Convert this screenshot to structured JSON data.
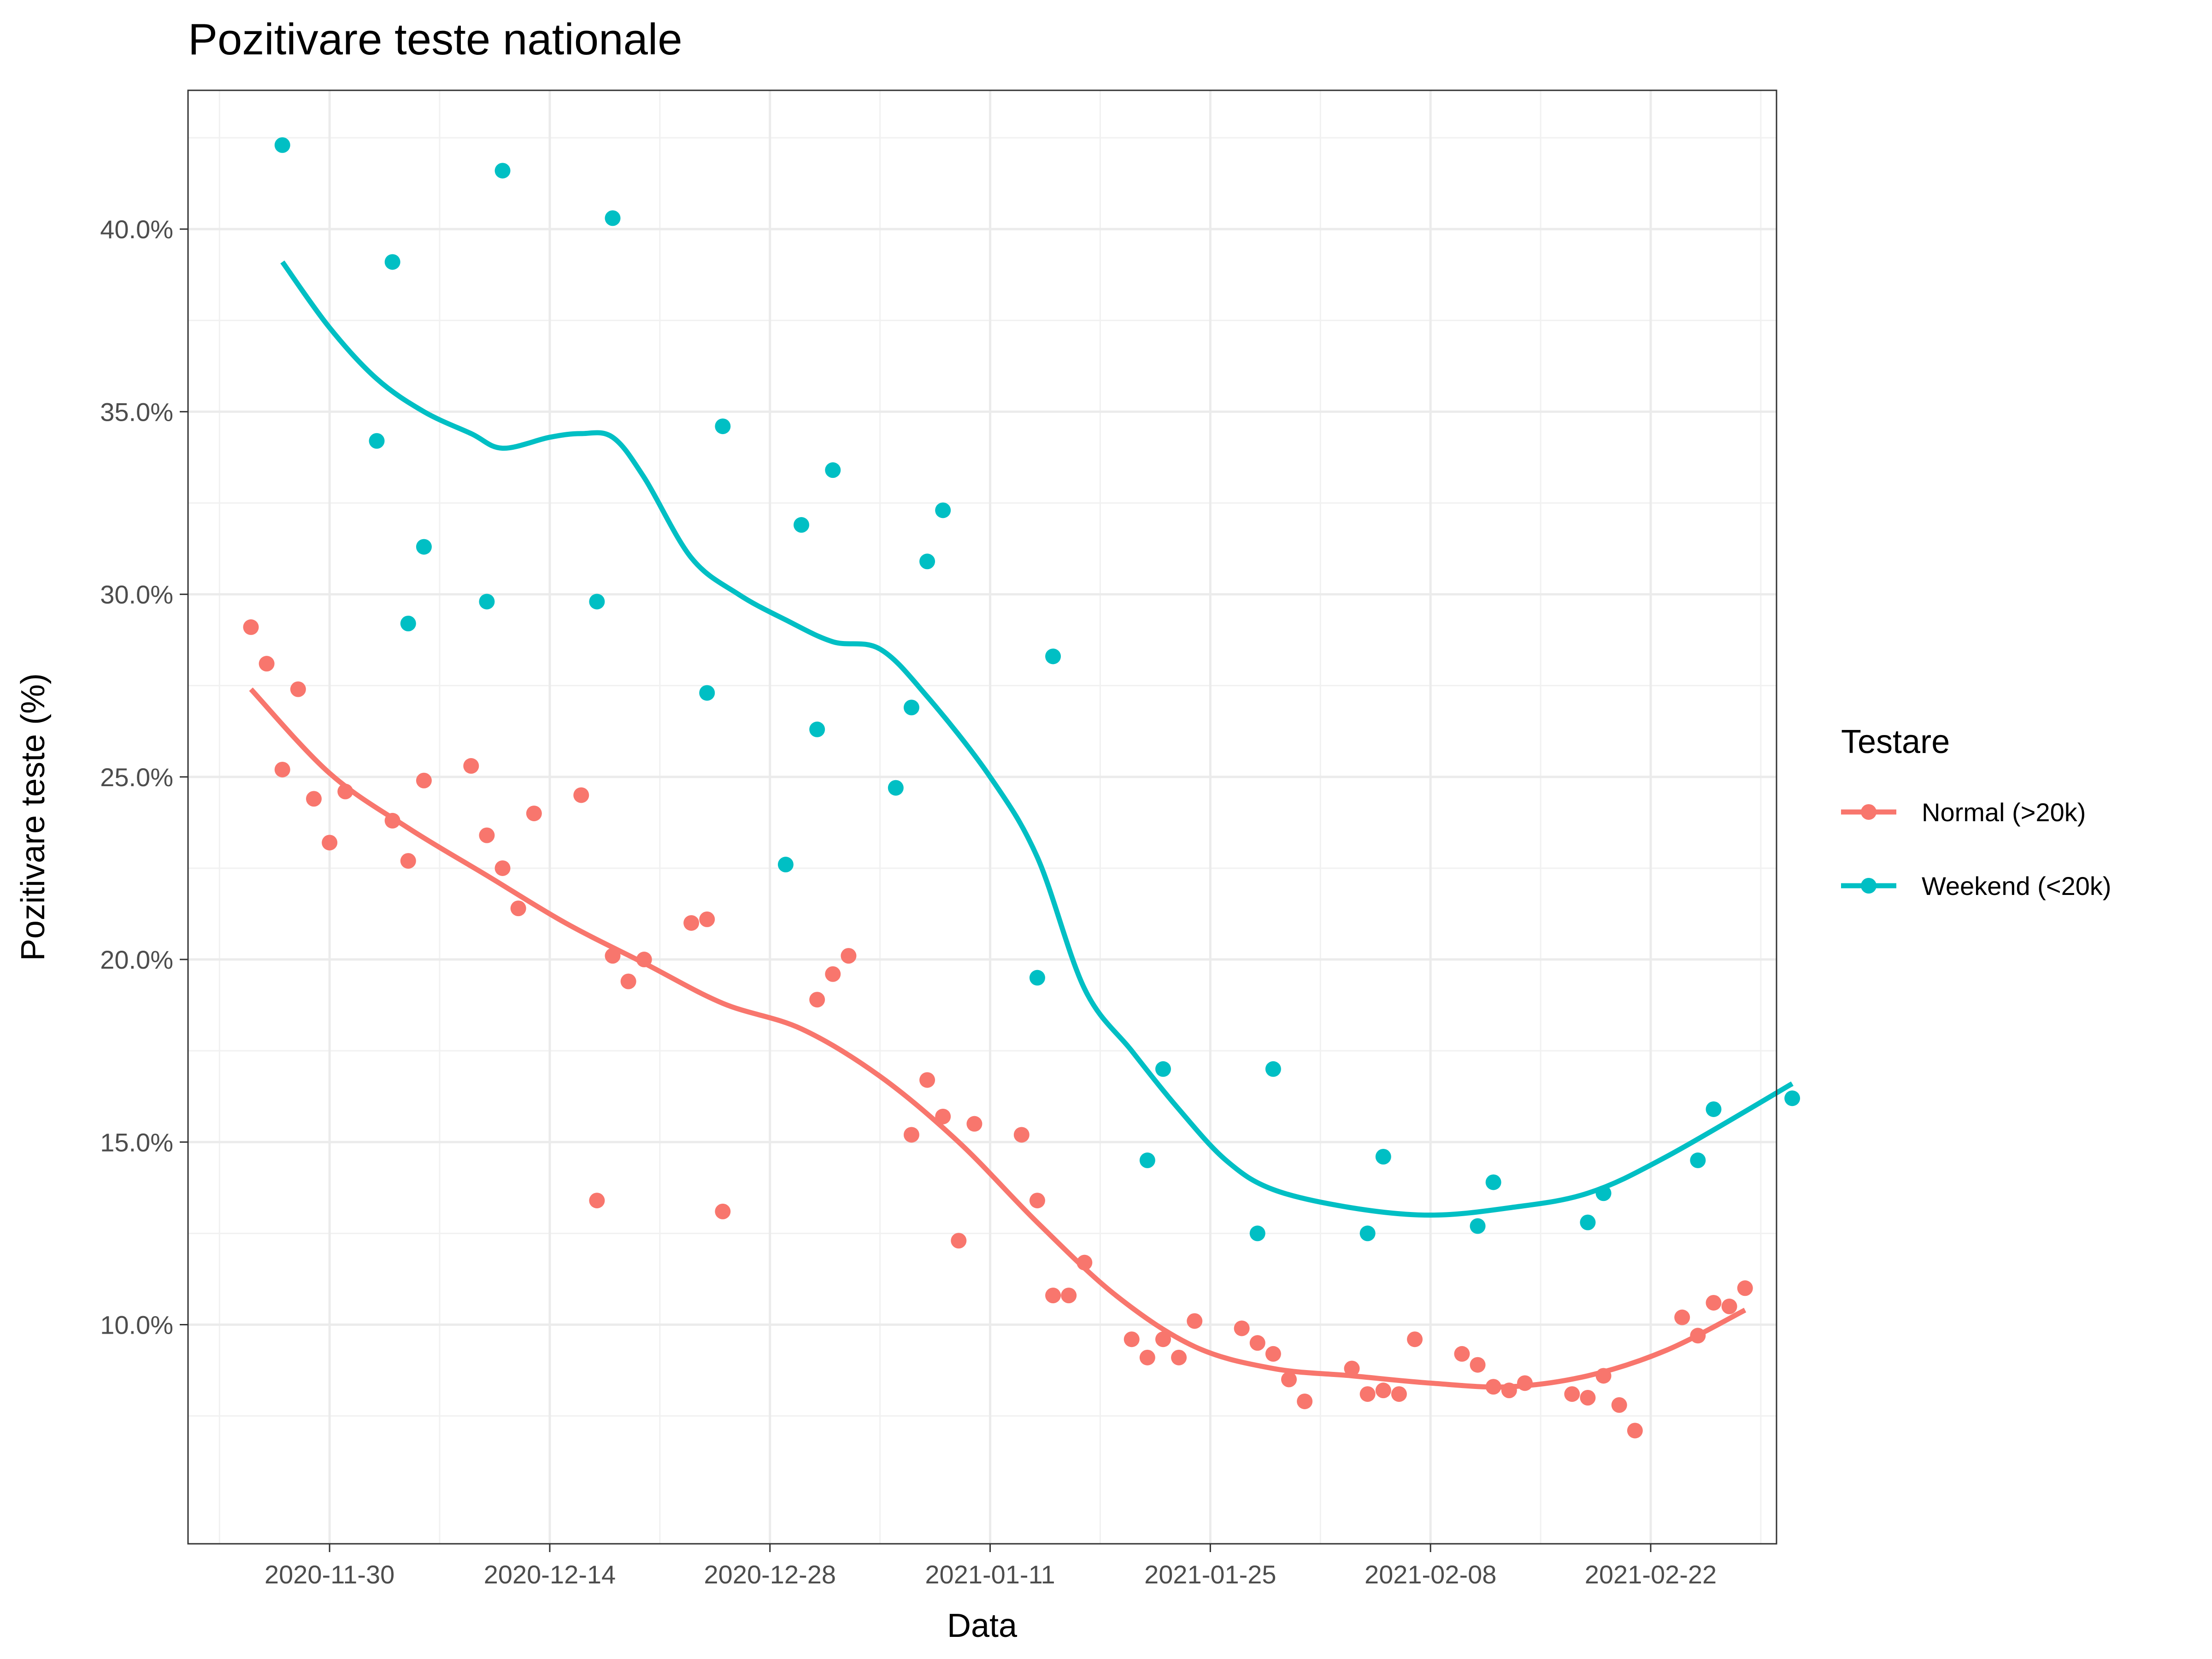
{
  "chart_data": {
    "type": "scatter",
    "title": "Pozitivare teste nationale",
    "xlabel": "Data",
    "ylabel": "Pozitivare teste (%)",
    "x_type": "date",
    "xlim": [
      "2020-11-21",
      "2021-03-02"
    ],
    "ylim": [
      4.0,
      43.8
    ],
    "x_ticks": [
      "2020-11-30",
      "2020-12-14",
      "2020-12-28",
      "2021-01-11",
      "2021-01-25",
      "2021-02-08",
      "2021-02-22"
    ],
    "y_ticks": [
      10,
      15,
      20,
      25,
      30,
      35,
      40
    ],
    "y_tick_labels": [
      "10.0%",
      "15.0%",
      "20.0%",
      "25.0%",
      "30.0%",
      "35.0%",
      "40.0%"
    ],
    "grid": true,
    "smooth_lines": true,
    "legend": {
      "title": "Testare",
      "position": "right"
    },
    "series": [
      {
        "name": "Normal (>20k)",
        "color": "#F8766D",
        "points": [
          [
            "2020-11-25",
            29.1
          ],
          [
            "2020-11-26",
            28.1
          ],
          [
            "2020-11-27",
            25.2
          ],
          [
            "2020-11-28",
            27.4
          ],
          [
            "2020-11-29",
            24.4
          ],
          [
            "2020-11-30",
            23.2
          ],
          [
            "2020-12-01",
            24.6
          ],
          [
            "2020-12-04",
            23.8
          ],
          [
            "2020-12-05",
            22.7
          ],
          [
            "2020-12-06",
            24.9
          ],
          [
            "2020-12-09",
            25.3
          ],
          [
            "2020-12-10",
            23.4
          ],
          [
            "2020-12-11",
            22.5
          ],
          [
            "2020-12-12",
            21.4
          ],
          [
            "2020-12-13",
            24.0
          ],
          [
            "2020-12-16",
            24.5
          ],
          [
            "2020-12-17",
            13.4
          ],
          [
            "2020-12-18",
            20.1
          ],
          [
            "2020-12-19",
            19.4
          ],
          [
            "2020-12-20",
            20.0
          ],
          [
            "2020-12-23",
            21.0
          ],
          [
            "2020-12-24",
            21.1
          ],
          [
            "2020-12-25",
            13.1
          ],
          [
            "2020-12-31",
            18.9
          ],
          [
            "2021-01-01",
            19.6
          ],
          [
            "2021-01-02",
            20.1
          ],
          [
            "2021-01-06",
            15.2
          ],
          [
            "2021-01-07",
            16.7
          ],
          [
            "2021-01-08",
            15.7
          ],
          [
            "2021-01-09",
            12.3
          ],
          [
            "2021-01-10",
            15.5
          ],
          [
            "2021-01-13",
            15.2
          ],
          [
            "2021-01-14",
            13.4
          ],
          [
            "2021-01-15",
            10.8
          ],
          [
            "2021-01-16",
            10.8
          ],
          [
            "2021-01-17",
            11.7
          ],
          [
            "2021-01-20",
            9.6
          ],
          [
            "2021-01-21",
            9.1
          ],
          [
            "2021-01-22",
            9.6
          ],
          [
            "2021-01-23",
            9.1
          ],
          [
            "2021-01-24",
            10.1
          ],
          [
            "2021-01-27",
            9.9
          ],
          [
            "2021-01-28",
            9.5
          ],
          [
            "2021-01-29",
            9.2
          ],
          [
            "2021-01-30",
            8.5
          ],
          [
            "2021-01-31",
            7.9
          ],
          [
            "2021-02-03",
            8.8
          ],
          [
            "2021-02-04",
            8.1
          ],
          [
            "2021-02-05",
            8.2
          ],
          [
            "2021-02-06",
            8.1
          ],
          [
            "2021-02-07",
            9.6
          ],
          [
            "2021-02-10",
            9.2
          ],
          [
            "2021-02-11",
            8.9
          ],
          [
            "2021-02-12",
            8.3
          ],
          [
            "2021-02-13",
            8.2
          ],
          [
            "2021-02-14",
            8.4
          ],
          [
            "2021-02-17",
            8.1
          ],
          [
            "2021-02-18",
            8.0
          ],
          [
            "2021-02-19",
            8.6
          ],
          [
            "2021-02-20",
            7.8
          ],
          [
            "2021-02-21",
            7.1
          ],
          [
            "2021-02-24",
            10.2
          ],
          [
            "2021-02-25",
            9.7
          ],
          [
            "2021-02-26",
            10.6
          ],
          [
            "2021-02-27",
            10.5
          ],
          [
            "2021-02-28",
            11.0
          ]
        ],
        "trend": [
          [
            "2020-11-25",
            27.4
          ],
          [
            "2020-11-30",
            25.1
          ],
          [
            "2020-12-05",
            23.6
          ],
          [
            "2020-12-10",
            22.3
          ],
          [
            "2020-12-15",
            21.0
          ],
          [
            "2020-12-20",
            19.9
          ],
          [
            "2020-12-25",
            18.8
          ],
          [
            "2020-12-30",
            18.1
          ],
          [
            "2021-01-04",
            16.8
          ],
          [
            "2021-01-09",
            15.0
          ],
          [
            "2021-01-14",
            12.8
          ],
          [
            "2021-01-19",
            10.8
          ],
          [
            "2021-01-24",
            9.4
          ],
          [
            "2021-01-29",
            8.8
          ],
          [
            "2021-02-03",
            8.6
          ],
          [
            "2021-02-08",
            8.4
          ],
          [
            "2021-02-13",
            8.3
          ],
          [
            "2021-02-18",
            8.6
          ],
          [
            "2021-02-23",
            9.3
          ],
          [
            "2021-02-28",
            10.4
          ]
        ]
      },
      {
        "name": "Weekend (<20k)",
        "color": "#00BFC4",
        "points": [
          [
            "2020-11-27",
            42.3
          ],
          [
            "2020-12-03",
            34.2
          ],
          [
            "2020-12-04",
            39.1
          ],
          [
            "2020-12-05",
            29.2
          ],
          [
            "2020-12-06",
            31.3
          ],
          [
            "2020-12-10",
            29.8
          ],
          [
            "2020-12-11",
            41.6
          ],
          [
            "2020-12-17",
            29.8
          ],
          [
            "2020-12-18",
            40.3
          ],
          [
            "2020-12-24",
            27.3
          ],
          [
            "2020-12-25",
            34.6
          ],
          [
            "2020-12-29",
            22.6
          ],
          [
            "2020-12-30",
            31.9
          ],
          [
            "2020-12-31",
            26.3
          ],
          [
            "2021-01-01",
            33.4
          ],
          [
            "2021-01-05",
            24.7
          ],
          [
            "2021-01-06",
            26.9
          ],
          [
            "2021-01-07",
            30.9
          ],
          [
            "2021-01-08",
            32.3
          ],
          [
            "2021-01-14",
            19.5
          ],
          [
            "2021-01-15",
            28.3
          ],
          [
            "2021-01-21",
            14.5
          ],
          [
            "2021-01-22",
            17.0
          ],
          [
            "2021-01-28",
            12.5
          ],
          [
            "2021-01-29",
            17.0
          ],
          [
            "2021-02-04",
            12.5
          ],
          [
            "2021-02-05",
            14.6
          ],
          [
            "2021-02-11",
            12.7
          ],
          [
            "2021-02-12",
            13.9
          ],
          [
            "2021-02-18",
            12.8
          ],
          [
            "2021-02-19",
            13.6
          ],
          [
            "2021-02-25",
            14.5
          ],
          [
            "2021-02-26",
            15.9
          ],
          [
            "2021-03-03",
            16.2
          ]
        ],
        "trend": [
          [
            "2020-11-27",
            39.1
          ],
          [
            "2020-11-30",
            37.3
          ],
          [
            "2020-12-03",
            35.9
          ],
          [
            "2020-12-06",
            35.0
          ],
          [
            "2020-12-09",
            34.4
          ],
          [
            "2020-12-11",
            34.0
          ],
          [
            "2020-12-14",
            34.3
          ],
          [
            "2020-12-16",
            34.4
          ],
          [
            "2020-12-18",
            34.3
          ],
          [
            "2020-12-20",
            33.2
          ],
          [
            "2020-12-23",
            31.0
          ],
          [
            "2020-12-26",
            30.0
          ],
          [
            "2020-12-29",
            29.3
          ],
          [
            "2021-01-01",
            28.7
          ],
          [
            "2021-01-04",
            28.5
          ],
          [
            "2021-01-07",
            27.2
          ],
          [
            "2021-01-11",
            25.0
          ],
          [
            "2021-01-14",
            22.8
          ],
          [
            "2021-01-17",
            19.2
          ],
          [
            "2021-01-20",
            17.5
          ],
          [
            "2021-01-23",
            15.9
          ],
          [
            "2021-01-26",
            14.5
          ],
          [
            "2021-01-29",
            13.7
          ],
          [
            "2021-02-03",
            13.2
          ],
          [
            "2021-02-08",
            13.0
          ],
          [
            "2021-02-13",
            13.2
          ],
          [
            "2021-02-18",
            13.6
          ],
          [
            "2021-02-23",
            14.6
          ],
          [
            "2021-03-03",
            16.6
          ]
        ]
      }
    ]
  }
}
